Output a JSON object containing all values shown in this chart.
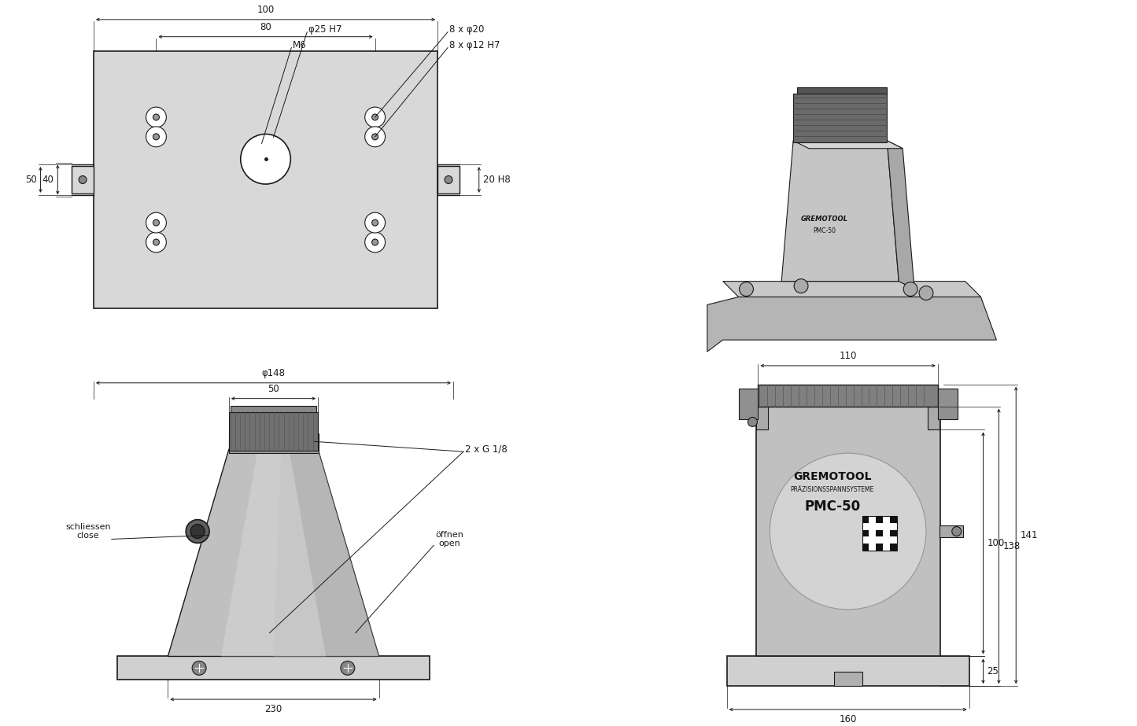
{
  "bg_color": "#ffffff",
  "dc": "#1a1a1a",
  "top_left": {
    "dim_100": "100",
    "dim_80": "80",
    "dim_50": "50",
    "dim_40": "40",
    "dim_20H8": "20 H8",
    "phi25H7": "φ25 H7",
    "M6": "M6",
    "lbl_8x20": "8 x φ20",
    "lbl_8x12": "8 x φ12 H7"
  },
  "bottom_left": {
    "phi148": "φ148",
    "dim_50": "50",
    "dim_230": "230",
    "schliessen": "schliessen\nclose",
    "offnen": "öffnen\nopen",
    "G18": "2 x G 1/8"
  },
  "bottom_right": {
    "dim_110": "110",
    "dim_160": "160",
    "dim_100": "100",
    "dim_138": "138",
    "dim_141": "141",
    "dim_25": "25"
  }
}
